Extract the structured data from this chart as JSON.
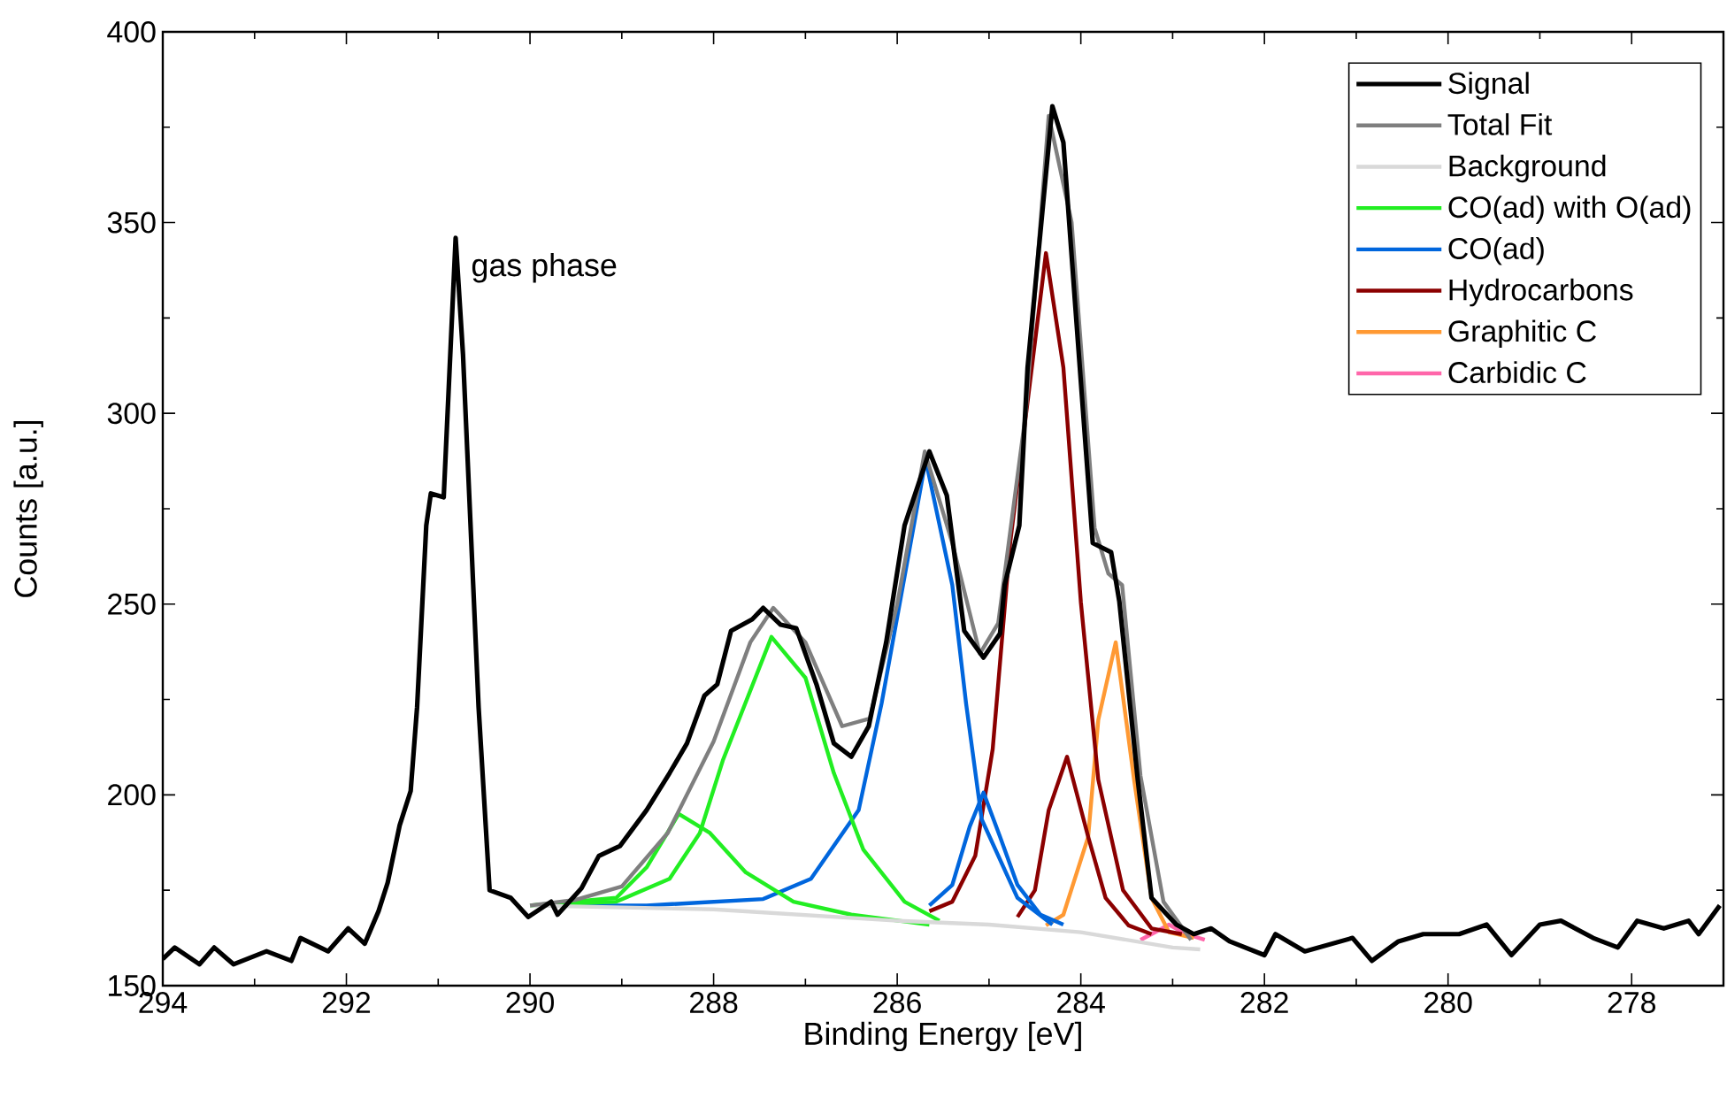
{
  "chart_data": {
    "type": "line",
    "xlabel": "Binding Energy [eV]",
    "ylabel": "Counts [a.u.]",
    "xlim": [
      294,
      277
    ],
    "ylim": [
      150,
      400
    ],
    "xticks": [
      294,
      {
        "value": 293,
        "label": null
      },
      292,
      {
        "value": 291,
        "label": null
      },
      290,
      {
        "value": 289,
        "label": null
      },
      288,
      {
        "value": 287,
        "label": null
      },
      286,
      {
        "value": 285,
        "label": null
      },
      284,
      {
        "value": 283,
        "label": null
      },
      282,
      {
        "value": 281,
        "label": null
      },
      280,
      {
        "value": 279,
        "label": null
      },
      278,
      {
        "value": 277,
        "label": null
      }
    ],
    "yticks": [
      150,
      {
        "value": 175,
        "label": null
      },
      200,
      {
        "value": 225,
        "label": null
      },
      250,
      {
        "value": 275,
        "label": null
      },
      300,
      {
        "value": 325,
        "label": null
      },
      350,
      {
        "value": 375,
        "label": null
      },
      400
    ],
    "legend": "top right",
    "annotations": [
      {
        "text": "gas phase",
        "x": 290.8,
        "y": 346
      }
    ],
    "series": [
      {
        "name": "Signal",
        "color": "#000000",
        "x": [
          294.0,
          293.87,
          293.6,
          293.44,
          293.23,
          292.87,
          292.6,
          292.5,
          292.2,
          291.98,
          291.8,
          291.65,
          291.55,
          291.42,
          291.3,
          291.23,
          291.13,
          291.08,
          290.94,
          290.81,
          290.73,
          290.56,
          290.44,
          290.21,
          290.02,
          289.77,
          289.7,
          289.44,
          289.25,
          289.02,
          288.73,
          288.48,
          288.29,
          288.1,
          287.96,
          287.81,
          287.58,
          287.46,
          287.27,
          287.1,
          286.88,
          286.69,
          286.5,
          286.31,
          286.12,
          285.92,
          285.65,
          285.46,
          285.27,
          285.06,
          284.88,
          284.83,
          284.67,
          284.58,
          284.31,
          284.19,
          284.06,
          283.87,
          283.67,
          283.58,
          283.38,
          283.23,
          282.96,
          282.77,
          282.58,
          282.38,
          282.0,
          281.88,
          281.56,
          281.04,
          280.83,
          280.54,
          280.27,
          279.88,
          279.58,
          279.31,
          279.0,
          278.77,
          278.42,
          278.15,
          277.94,
          277.65,
          277.38,
          277.27,
          277.04
        ],
        "values": [
          157,
          160,
          155.6,
          160,
          155.6,
          159,
          156.5,
          162.5,
          159,
          165,
          161,
          169.5,
          177,
          192,
          201,
          223,
          270.6,
          279,
          278,
          346,
          315.5,
          223,
          175,
          173,
          168,
          172,
          168.6,
          175.5,
          184,
          186.6,
          196,
          205.7,
          213.5,
          226,
          229,
          243,
          246,
          249,
          244.6,
          243.7,
          229,
          213.5,
          210,
          218,
          240,
          270.6,
          290,
          278.5,
          243,
          236,
          242.3,
          255,
          270.6,
          312,
          380.5,
          371,
          328,
          266,
          263.6,
          250.6,
          204,
          173,
          166,
          163.5,
          165,
          161.6,
          158,
          163.5,
          159,
          162.5,
          156.5,
          161.6,
          163.5,
          163.5,
          166,
          158,
          166,
          167,
          162.5,
          160,
          167,
          165,
          167,
          163.5,
          171
        ]
      },
      {
        "name": "Total Fit",
        "color": "#7f7f7f",
        "x": [
          290.0,
          289.5,
          289.0,
          288.5,
          288.0,
          287.6,
          287.35,
          287.0,
          286.6,
          286.3,
          286.0,
          285.7,
          285.4,
          285.1,
          284.9,
          284.6,
          284.35,
          284.1,
          283.85,
          283.7,
          283.55,
          283.35,
          283.1,
          282.8
        ],
        "values": [
          171,
          172.5,
          176,
          190,
          214,
          240,
          249,
          240,
          218,
          220,
          250,
          290,
          266,
          237,
          245,
          300,
          378,
          350,
          270,
          258,
          255,
          205,
          172,
          162
        ]
      },
      {
        "name": "Background",
        "color": "#d9d9d9",
        "x": [
          290.0,
          288.0,
          286.0,
          285.0,
          284.0,
          283.5,
          283.0,
          282.7
        ],
        "values": [
          171,
          170,
          167,
          166,
          164,
          162,
          160,
          159.5
        ]
      },
      {
        "name": "CO(ad) with O(ad)",
        "color": "#22ee22",
        "x": [
          290.0,
          289.06,
          288.73,
          288.38,
          288.04,
          287.65,
          287.13,
          286.5,
          285.65
        ],
        "values": [
          171,
          173,
          181,
          195,
          190,
          179.7,
          172,
          168.6,
          166
        ]
      },
      {
        "color": "#22ee22",
        "x": [
          290.0,
          289.06,
          288.48,
          288.15,
          287.9,
          287.37,
          287.0,
          286.69,
          286.37,
          285.92,
          285.54
        ],
        "values": [
          171,
          172,
          178,
          190,
          209,
          241.4,
          230.7,
          205.7,
          185.7,
          172,
          167
        ]
      },
      {
        "name": "CO(ad)",
        "color": "#0066dd",
        "x": [
          289.7,
          288.73,
          287.46,
          286.94,
          286.42,
          286.17,
          285.69,
          285.4,
          285.25,
          285.08,
          284.69,
          284.31
        ],
        "values": [
          171,
          171,
          172.7,
          178,
          196,
          224,
          287.8,
          255,
          224,
          193.6,
          173,
          166
        ]
      },
      {
        "color": "#0066dd",
        "x": [
          285.65,
          285.4,
          285.21,
          285.06,
          284.88,
          284.69,
          284.44,
          284.19
        ],
        "values": [
          171,
          176.4,
          191.7,
          200.6,
          189,
          176.4,
          168.6,
          166
        ]
      },
      {
        "name": "Hydrocarbons",
        "color": "#8b0000",
        "x": [
          285.65,
          285.4,
          285.15,
          284.96,
          284.77,
          284.38,
          284.19,
          284.0,
          283.81,
          283.54,
          283.23,
          282.9
        ],
        "values": [
          169.5,
          172,
          184,
          212,
          266,
          342,
          312,
          250.6,
          204,
          175,
          165,
          163.5
        ]
      },
      {
        "color": "#8b0000",
        "x": [
          284.69,
          284.5,
          284.35,
          284.15,
          283.92,
          283.73,
          283.48,
          283.23
        ],
        "values": [
          168,
          175,
          196,
          210,
          189,
          173,
          165.8,
          163.5
        ]
      },
      {
        "name": "Graphitic C",
        "color": "#ff9933",
        "x": [
          284.38,
          284.19,
          283.92,
          283.81,
          283.62,
          283.42,
          283.23,
          283.04,
          282.77
        ],
        "values": [
          165.8,
          168.6,
          189,
          219.6,
          240,
          204,
          173,
          164,
          162.5
        ]
      },
      {
        "name": "Carbidic C",
        "color": "#ff66aa",
        "x": [
          283.35,
          283.23,
          283.04,
          282.85,
          282.65
        ],
        "values": [
          162,
          163.5,
          166,
          163.5,
          162
        ]
      }
    ]
  }
}
